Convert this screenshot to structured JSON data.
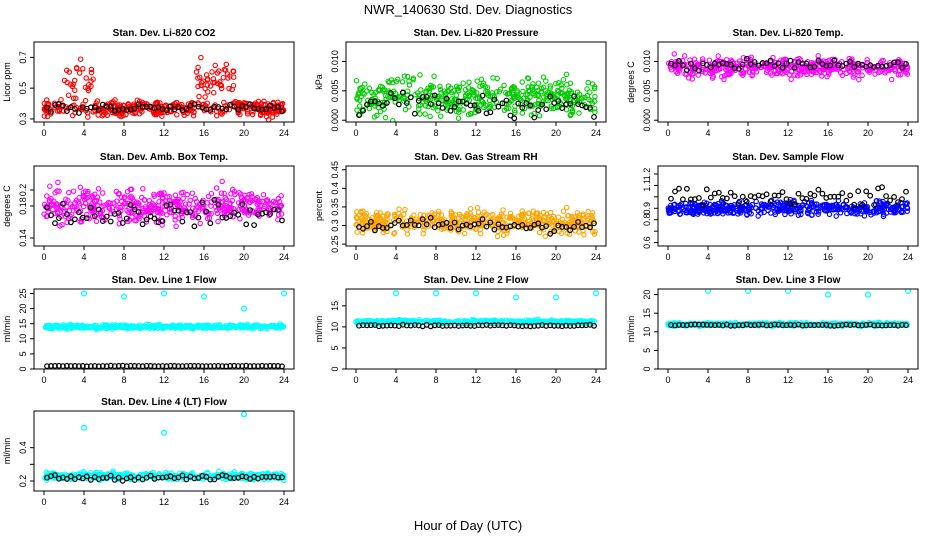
{
  "figure": {
    "title": "NWR_140630  Std. Dev. Diagnostics",
    "xlabel": "Hour of Day (UTC)"
  },
  "chart_data": [
    {
      "type": "scatter",
      "title": "Stan. Dev. Li-820 CO2",
      "ylabel": "Licor ppm",
      "color": "#ff0000",
      "xlim": [
        -1,
        25
      ],
      "ylim": [
        0.28,
        0.8
      ],
      "xticks": [
        0,
        4,
        8,
        12,
        16,
        20,
        24
      ],
      "yticks": [
        0.3,
        0.5,
        0.7
      ],
      "series_color": {
        "mean": 0.37,
        "spread": 0.05,
        "extra": [
          {
            "from": 2,
            "to": 5,
            "mean": 0.55,
            "spread": 0.12
          },
          {
            "from": 15,
            "to": 19,
            "mean": 0.55,
            "spread": 0.12
          }
        ]
      },
      "series_black": {
        "mean": 0.37,
        "spread": 0.03
      }
    },
    {
      "type": "scatter",
      "title": "Stan. Dev. Li-820 Pressure",
      "ylabel": "kPa",
      "color": "#00cc00",
      "xlim": [
        -1,
        25
      ],
      "ylim": [
        -0.0003,
        0.0133
      ],
      "xticks": [
        0,
        4,
        8,
        12,
        16,
        20,
        24
      ],
      "yticks": [
        0.0,
        0.005,
        0.01
      ],
      "ytick_labels": [
        "0.000",
        "0.005",
        "0.010"
      ],
      "series_color": {
        "mean": 0.004,
        "spread": 0.003
      },
      "series_black": {
        "mean": 0.0025,
        "spread": 0.002
      }
    },
    {
      "type": "scatter",
      "title": "Stan. Dev. Li-820 Temp.",
      "ylabel": "degrees C",
      "color": "#ff00ff",
      "xlim": [
        -1,
        25
      ],
      "ylim": [
        -0.0003,
        0.0133
      ],
      "xticks": [
        0,
        4,
        8,
        12,
        16,
        20,
        24
      ],
      "yticks": [
        0.0,
        0.005,
        0.01
      ],
      "ytick_labels": [
        "0.000",
        "0.005",
        "0.010"
      ],
      "series_color": {
        "mean": 0.009,
        "spread": 0.0015
      },
      "series_black": {
        "mean": 0.0095,
        "spread": 0.001
      }
    },
    {
      "type": "scatter",
      "title": "Stan. Dev. Amb. Box Temp.",
      "ylabel": "degrees C",
      "color": "#ff00ff",
      "xlim": [
        -1,
        25
      ],
      "ylim": [
        0.13,
        0.23
      ],
      "xticks": [
        0,
        4,
        8,
        12,
        16,
        20,
        24
      ],
      "yticks": [
        0.14,
        0.18,
        0.2
      ],
      "series_color": {
        "mean": 0.18,
        "spread": 0.02
      },
      "series_black": {
        "mean": 0.17,
        "spread": 0.015
      }
    },
    {
      "type": "scatter",
      "title": "Stan. Dev. Gas Stream RH",
      "ylabel": "percent",
      "color": "#ffa500",
      "xlim": [
        -1,
        25
      ],
      "ylim": [
        0.245,
        0.46
      ],
      "xticks": [
        0,
        4,
        8,
        12,
        16,
        20,
        24
      ],
      "yticks": [
        0.25,
        0.3,
        0.35,
        0.4,
        0.45
      ],
      "series_color": {
        "mean": 0.31,
        "spread": 0.03
      },
      "series_black": {
        "mean": 0.3,
        "spread": 0.02
      }
    },
    {
      "type": "scatter",
      "title": "Stan. Dev. Sample Flow",
      "ylabel": "",
      "color": "#0000ff",
      "xlim": [
        -1,
        25
      ],
      "ylim": [
        0.57,
        1.27
      ],
      "xticks": [
        0,
        4,
        8,
        12,
        16,
        20,
        24
      ],
      "yticks": [
        0.6,
        0.7,
        0.8,
        0.9,
        1.0,
        1.1,
        1.2
      ],
      "ytick_labels": [
        "0.6",
        "",
        "0.8",
        "0.9",
        "",
        "1.1",
        "1.2"
      ],
      "series_color": {
        "mean": 0.9,
        "spread": 0.06
      },
      "series_black": {
        "mean": 1.0,
        "spread": 0.08
      }
    },
    {
      "type": "scatter",
      "title": "Stan. Dev. Line 1 Flow",
      "ylabel": "ml/min",
      "color": "#00ffff",
      "xlim": [
        -1,
        25
      ],
      "ylim": [
        0,
        26.5
      ],
      "xticks": [
        0,
        4,
        8,
        12,
        16,
        20,
        24
      ],
      "yticks": [
        0,
        5,
        10,
        15,
        20,
        25
      ],
      "series_color": {
        "mean": 14,
        "spread": 0.6
      },
      "series_black": {
        "mean": 1,
        "spread": 0.1
      },
      "outliers": [
        [
          4,
          25
        ],
        [
          8,
          24
        ],
        [
          12,
          25
        ],
        [
          16,
          24
        ],
        [
          20,
          20
        ],
        [
          24,
          25
        ]
      ]
    },
    {
      "type": "scatter",
      "title": "Stan. Dev. Line 2 Flow",
      "ylabel": "ml/min",
      "color": "#00ffff",
      "xlim": [
        -1,
        25
      ],
      "ylim": [
        0,
        19
      ],
      "xticks": [
        0,
        4,
        8,
        12,
        16,
        20,
        24
      ],
      "yticks": [
        0,
        5,
        10,
        15
      ],
      "series_color": {
        "mean": 11.2,
        "spread": 0.4
      },
      "series_black": {
        "mean": 10.3,
        "spread": 0.2
      },
      "outliers": [
        [
          4,
          18
        ],
        [
          8,
          18
        ],
        [
          12,
          18
        ],
        [
          16,
          17
        ],
        [
          20,
          17
        ],
        [
          24,
          18
        ]
      ]
    },
    {
      "type": "scatter",
      "title": "Stan. Dev. Line 3 Flow",
      "ylabel": "ml/min",
      "color": "#00ffff",
      "xlim": [
        -1,
        25
      ],
      "ylim": [
        0,
        21.5
      ],
      "xticks": [
        0,
        4,
        8,
        12,
        16,
        20,
        24
      ],
      "yticks": [
        0,
        5,
        10,
        15,
        20
      ],
      "series_color": {
        "mean": 12,
        "spread": 0.4
      },
      "series_black": {
        "mean": 11.8,
        "spread": 0.2
      },
      "outliers": [
        [
          4,
          21
        ],
        [
          8,
          21
        ],
        [
          12,
          21
        ],
        [
          16,
          20
        ],
        [
          20,
          20
        ],
        [
          24,
          21
        ]
      ]
    },
    {
      "type": "scatter",
      "title": "Stan. Dev. Line 4 (LT) Flow",
      "ylabel": "ml/min",
      "color": "#00ffff",
      "xlim": [
        -1,
        25
      ],
      "ylim": [
        0.14,
        0.62
      ],
      "xticks": [
        0,
        4,
        8,
        12,
        16,
        20,
        24
      ],
      "yticks": [
        0.2,
        0.3,
        0.4
      ],
      "ytick_labels": [
        "0.2",
        "",
        "0.4"
      ],
      "series_color": {
        "mean": 0.23,
        "spread": 0.02
      },
      "series_black": {
        "mean": 0.22,
        "spread": 0.015
      },
      "outliers": [
        [
          4,
          0.52
        ],
        [
          12,
          0.49
        ],
        [
          20,
          0.6
        ]
      ]
    }
  ]
}
